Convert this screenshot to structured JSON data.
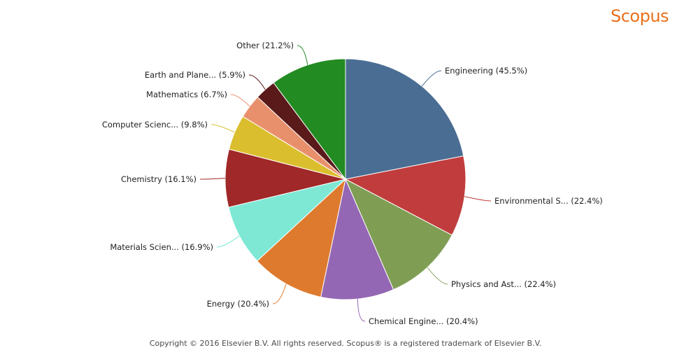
{
  "brand": {
    "logo_text": "Scopus",
    "color": "#E9711C"
  },
  "chart_data": {
    "type": "pie",
    "title": "",
    "start_angle_deg": 0,
    "direction": "clockwise",
    "slices": [
      {
        "label": "Engineering (45.5%)",
        "value": 45.5,
        "color": "#4A6D93"
      },
      {
        "label": "Environmental S... (22.4%)",
        "value": 22.4,
        "color": "#C13D3D"
      },
      {
        "label": "Physics and Ast... (22.4%)",
        "value": 22.4,
        "color": "#7F9E54"
      },
      {
        "label": "Chemical Engine... (20.4%)",
        "value": 20.4,
        "color": "#9467B4"
      },
      {
        "label": "Energy (20.4%)",
        "value": 20.4,
        "color": "#DE7A2E"
      },
      {
        "label": "Materials Scien... (16.9%)",
        "value": 16.9,
        "color": "#7EE8D4"
      },
      {
        "label": "Chemistry (16.1%)",
        "value": 16.1,
        "color": "#A02828"
      },
      {
        "label": "Computer Scienc... (9.8%)",
        "value": 9.8,
        "color": "#DBBE2E"
      },
      {
        "label": "Mathematics (6.7%)",
        "value": 6.7,
        "color": "#E8906C"
      },
      {
        "label": "Earth and Plane... (5.9%)",
        "value": 5.9,
        "color": "#5A1A1A"
      },
      {
        "label": "Other (21.2%)",
        "value": 21.2,
        "color": "#228B22"
      }
    ]
  },
  "footer": {
    "copyright": "Copyright © 2016 Elsevier B.V. All rights reserved. Scopus® is a registered trademark of Elsevier B.V."
  }
}
